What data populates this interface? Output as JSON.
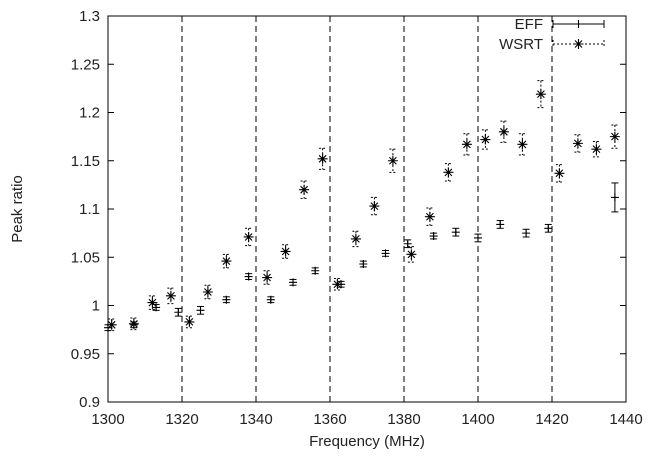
{
  "chart_data": {
    "type": "scatter",
    "xlabel": "Frequency (MHz)",
    "ylabel": "Peak ratio",
    "xlim": [
      1300,
      1440
    ],
    "ylim": [
      0.9,
      1.3
    ],
    "xticks": [
      "1300",
      "1320",
      "1340",
      "1360",
      "1380",
      "1400",
      "1420",
      "1440"
    ],
    "yticks": [
      "0.9",
      "0.95",
      "1",
      "1.05",
      "1.1",
      "1.15",
      "1.2",
      "1.25",
      "1.3"
    ],
    "grid": "vertical dashed lines at x = 1320, 1340, 1360, 1380, 1400, 1420",
    "legend_position": "top-right",
    "series": [
      {
        "name": "EFF",
        "marker": "plus",
        "points": [
          {
            "x": 1300,
            "y": 0.977,
            "err": 0.003
          },
          {
            "x": 1307,
            "y": 0.98,
            "err": 0.003
          },
          {
            "x": 1313,
            "y": 0.998,
            "err": 0.003
          },
          {
            "x": 1319,
            "y": 0.993,
            "err": 0.004
          },
          {
            "x": 1325,
            "y": 0.995,
            "err": 0.004
          },
          {
            "x": 1332,
            "y": 1.006,
            "err": 0.003
          },
          {
            "x": 1338,
            "y": 1.03,
            "err": 0.003
          },
          {
            "x": 1344,
            "y": 1.006,
            "err": 0.003
          },
          {
            "x": 1350,
            "y": 1.024,
            "err": 0.003
          },
          {
            "x": 1356,
            "y": 1.036,
            "err": 0.003
          },
          {
            "x": 1363,
            "y": 1.022,
            "err": 0.003
          },
          {
            "x": 1369,
            "y": 1.043,
            "err": 0.003
          },
          {
            "x": 1375,
            "y": 1.054,
            "err": 0.003
          },
          {
            "x": 1381,
            "y": 1.064,
            "err": 0.004
          },
          {
            "x": 1388,
            "y": 1.072,
            "err": 0.003
          },
          {
            "x": 1394,
            "y": 1.076,
            "err": 0.004
          },
          {
            "x": 1400,
            "y": 1.07,
            "err": 0.004
          },
          {
            "x": 1406,
            "y": 1.084,
            "err": 0.004
          },
          {
            "x": 1413,
            "y": 1.075,
            "err": 0.004
          },
          {
            "x": 1419,
            "y": 1.08,
            "err": 0.004
          },
          {
            "x": 1437,
            "y": 1.112,
            "err": 0.015
          }
        ]
      },
      {
        "name": "WSRT",
        "marker": "star",
        "points": [
          {
            "x": 1301,
            "y": 0.98,
            "err": 0.006
          },
          {
            "x": 1307,
            "y": 0.981,
            "err": 0.006
          },
          {
            "x": 1312,
            "y": 1.003,
            "err": 0.007
          },
          {
            "x": 1317,
            "y": 1.01,
            "err": 0.008
          },
          {
            "x": 1322,
            "y": 0.983,
            "err": 0.006
          },
          {
            "x": 1327,
            "y": 1.014,
            "err": 0.007
          },
          {
            "x": 1332,
            "y": 1.046,
            "err": 0.007
          },
          {
            "x": 1338,
            "y": 1.071,
            "err": 0.009
          },
          {
            "x": 1343,
            "y": 1.029,
            "err": 0.007
          },
          {
            "x": 1348,
            "y": 1.056,
            "err": 0.007
          },
          {
            "x": 1353,
            "y": 1.12,
            "err": 0.009
          },
          {
            "x": 1358,
            "y": 1.152,
            "err": 0.011
          },
          {
            "x": 1362,
            "y": 1.022,
            "err": 0.006
          },
          {
            "x": 1367,
            "y": 1.069,
            "err": 0.008
          },
          {
            "x": 1372,
            "y": 1.103,
            "err": 0.009
          },
          {
            "x": 1377,
            "y": 1.15,
            "err": 0.012
          },
          {
            "x": 1382,
            "y": 1.053,
            "err": 0.008
          },
          {
            "x": 1387,
            "y": 1.092,
            "err": 0.009
          },
          {
            "x": 1392,
            "y": 1.138,
            "err": 0.009
          },
          {
            "x": 1397,
            "y": 1.167,
            "err": 0.011
          },
          {
            "x": 1402,
            "y": 1.172,
            "err": 0.01
          },
          {
            "x": 1407,
            "y": 1.18,
            "err": 0.011
          },
          {
            "x": 1412,
            "y": 1.167,
            "err": 0.011
          },
          {
            "x": 1417,
            "y": 1.219,
            "err": 0.014
          },
          {
            "x": 1422,
            "y": 1.137,
            "err": 0.009
          },
          {
            "x": 1427,
            "y": 1.168,
            "err": 0.009
          },
          {
            "x": 1432,
            "y": 1.162,
            "err": 0.008
          },
          {
            "x": 1437,
            "y": 1.175,
            "err": 0.012
          }
        ]
      }
    ]
  }
}
